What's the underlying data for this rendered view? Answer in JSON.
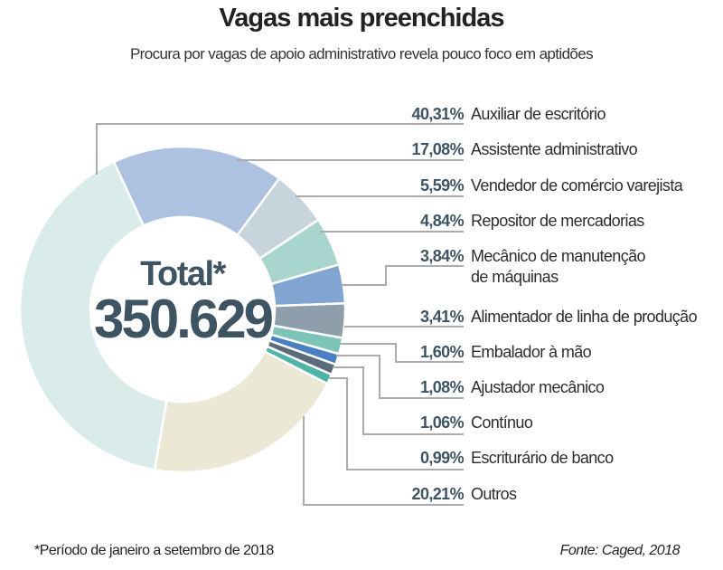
{
  "chart_data": {
    "type": "pie",
    "title": "Vagas mais preenchidas",
    "subtitle": "Procura por vagas de apoio administrativo revela pouco foco em aptidões",
    "center_label": "Total*",
    "center_value": "350.629",
    "slices": [
      {
        "label": "Auxiliar de escritório",
        "value": 40.31,
        "pct_text": "40,31%",
        "color": "#d9ecea"
      },
      {
        "label": "Assistente administrativo",
        "value": 17.08,
        "pct_text": "17,08%",
        "color": "#adc1e1"
      },
      {
        "label": "Vendedor de comércio varejista",
        "value": 5.59,
        "pct_text": "5,59%",
        "color": "#c8d4dc"
      },
      {
        "label": "Repositor de mercadorias",
        "value": 4.84,
        "pct_text": "4,84%",
        "color": "#a9d5cf"
      },
      {
        "label": "Mecânico de manutenção",
        "label2": "de máquinas",
        "value": 3.84,
        "pct_text": "3,84%",
        "color": "#82a4d0"
      },
      {
        "label": "Alimentador de linha de produção",
        "value": 3.41,
        "pct_text": "3,41%",
        "color": "#8e9fab"
      },
      {
        "label": "Embalador à mão",
        "value": 1.6,
        "pct_text": "1,60%",
        "color": "#7dc4b8"
      },
      {
        "label": "Ajustador mecânico",
        "value": 1.08,
        "pct_text": "1,08%",
        "color": "#4a80c1"
      },
      {
        "label": "Contínuo",
        "value": 1.06,
        "pct_text": "1,06%",
        "color": "#5a6b79"
      },
      {
        "label": "Escriturário de banco",
        "value": 0.99,
        "pct_text": "0,99%",
        "color": "#4fb4a8"
      },
      {
        "label": "Outros",
        "value": 20.21,
        "pct_text": "20,21%",
        "color": "#ebe8d5"
      }
    ]
  },
  "footnote": "*Período de janeiro a setembro de 2018",
  "source": "Fonte: Caged, 2018"
}
